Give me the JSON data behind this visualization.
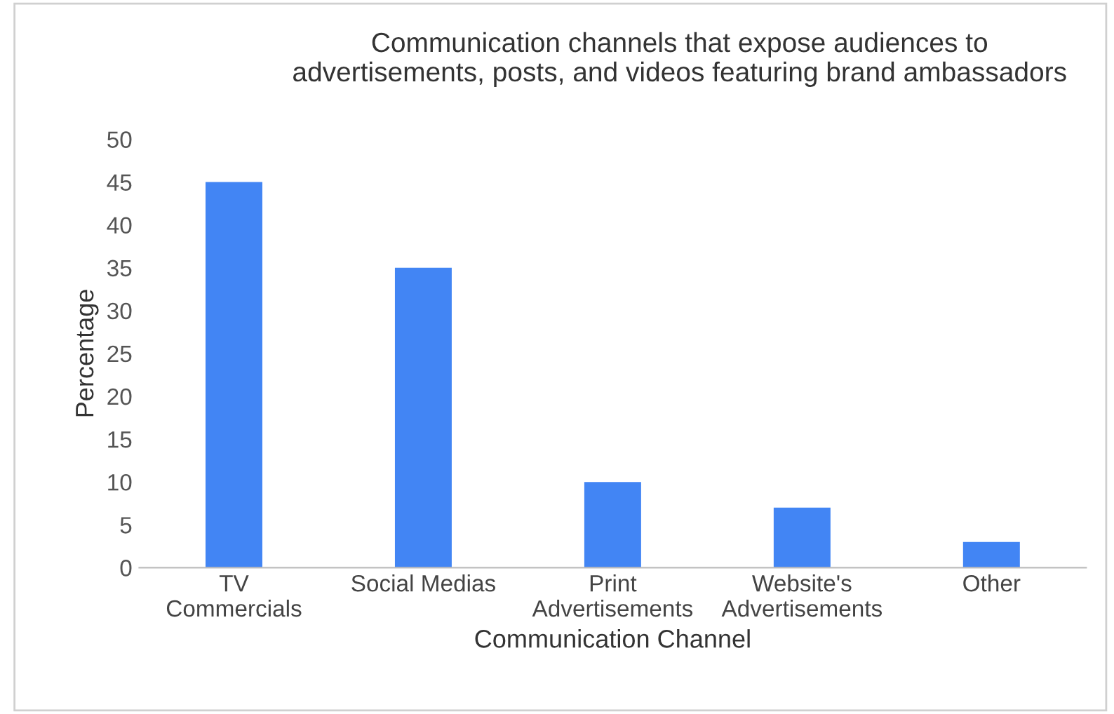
{
  "chart_data": {
    "type": "bar",
    "title": "Communication channels that expose audiences to\nadvertisements, posts, and videos featuring brand ambassadors",
    "xlabel": "Communication Channel",
    "ylabel": "Percentage",
    "categories": [
      "TV\nCommercials",
      "Social Medias",
      "Print\nAdvertisements",
      "Website's\nAdvertisements",
      "Other"
    ],
    "values": [
      45,
      35,
      10,
      7,
      3
    ],
    "color": "#4285f4",
    "ylim": [
      0,
      50
    ],
    "yticks": [
      0,
      5,
      10,
      15,
      20,
      25,
      30,
      35,
      40,
      45,
      50
    ],
    "grid": false
  }
}
